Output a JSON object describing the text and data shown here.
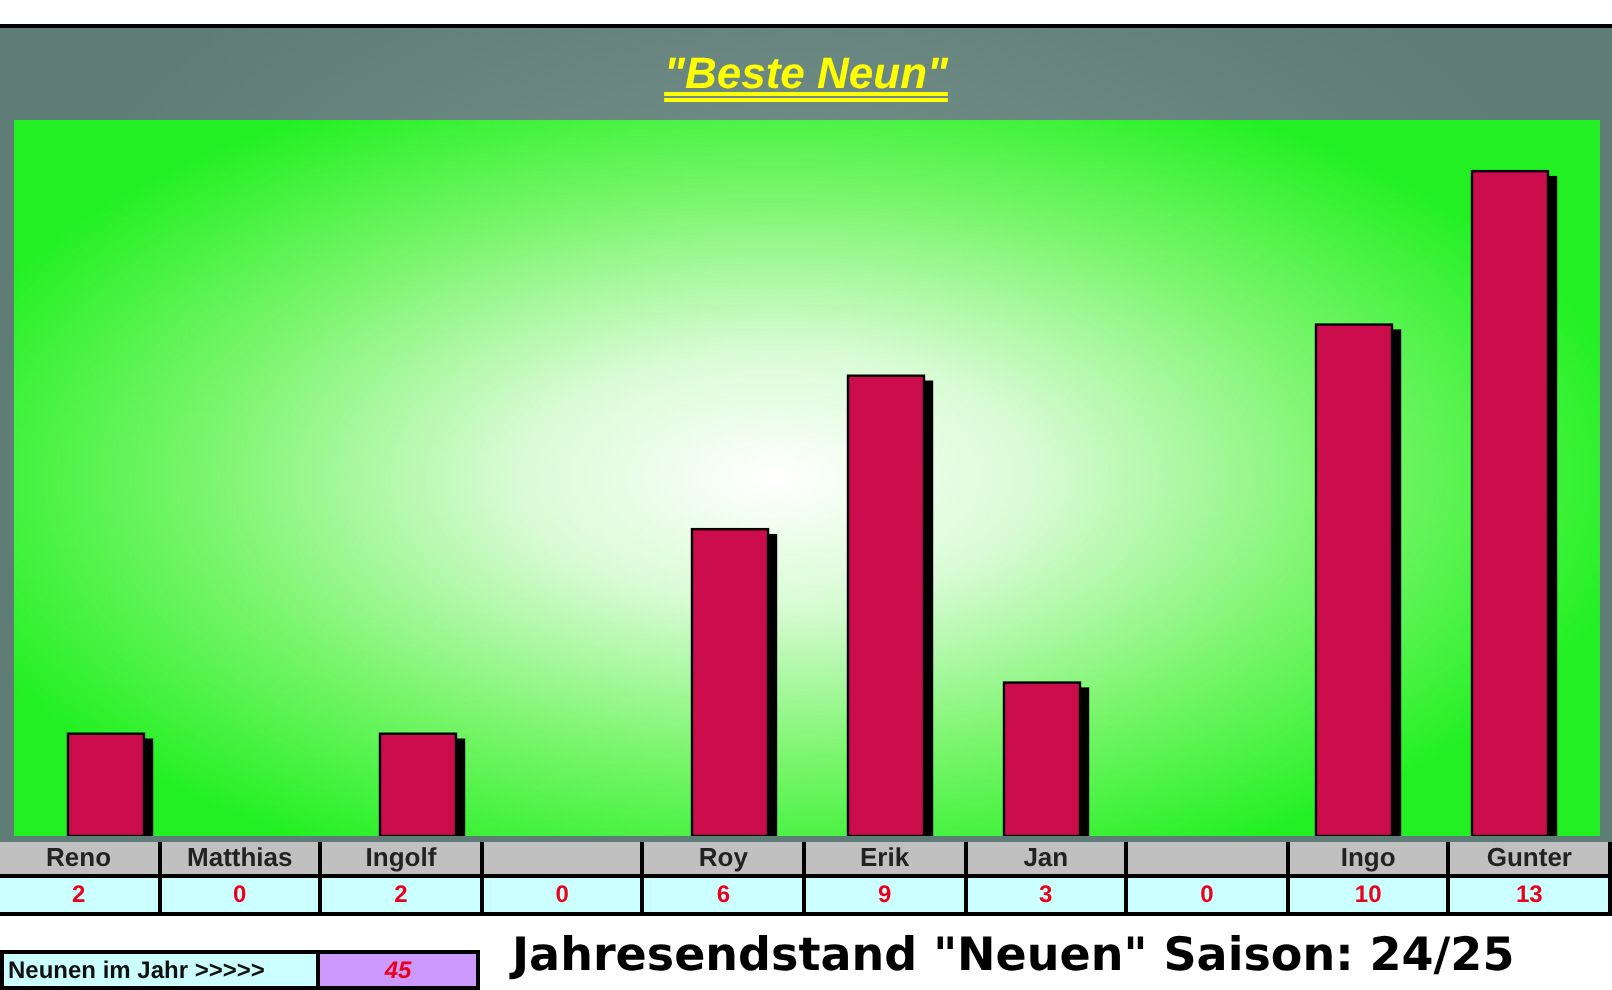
{
  "chart_data": {
    "type": "bar",
    "title": "\"Beste Neun\"",
    "categories": [
      "Reno",
      "Matthias",
      "Ingolf",
      null,
      "Roy",
      "Erik",
      "Jan",
      null,
      "Ingo",
      "Gunter"
    ],
    "values": [
      2,
      0,
      2,
      0,
      6,
      9,
      3,
      0,
      10,
      13
    ],
    "color": "#cc0a4e",
    "ylim": [
      0,
      14
    ],
    "tick_labels": "x",
    "data_labels": true,
    "annotations": [
      "Neunen im Jahr >>>>>",
      "45",
      "Jahresendstand \"Neuen\" Saison: 24/25"
    ]
  }
}
